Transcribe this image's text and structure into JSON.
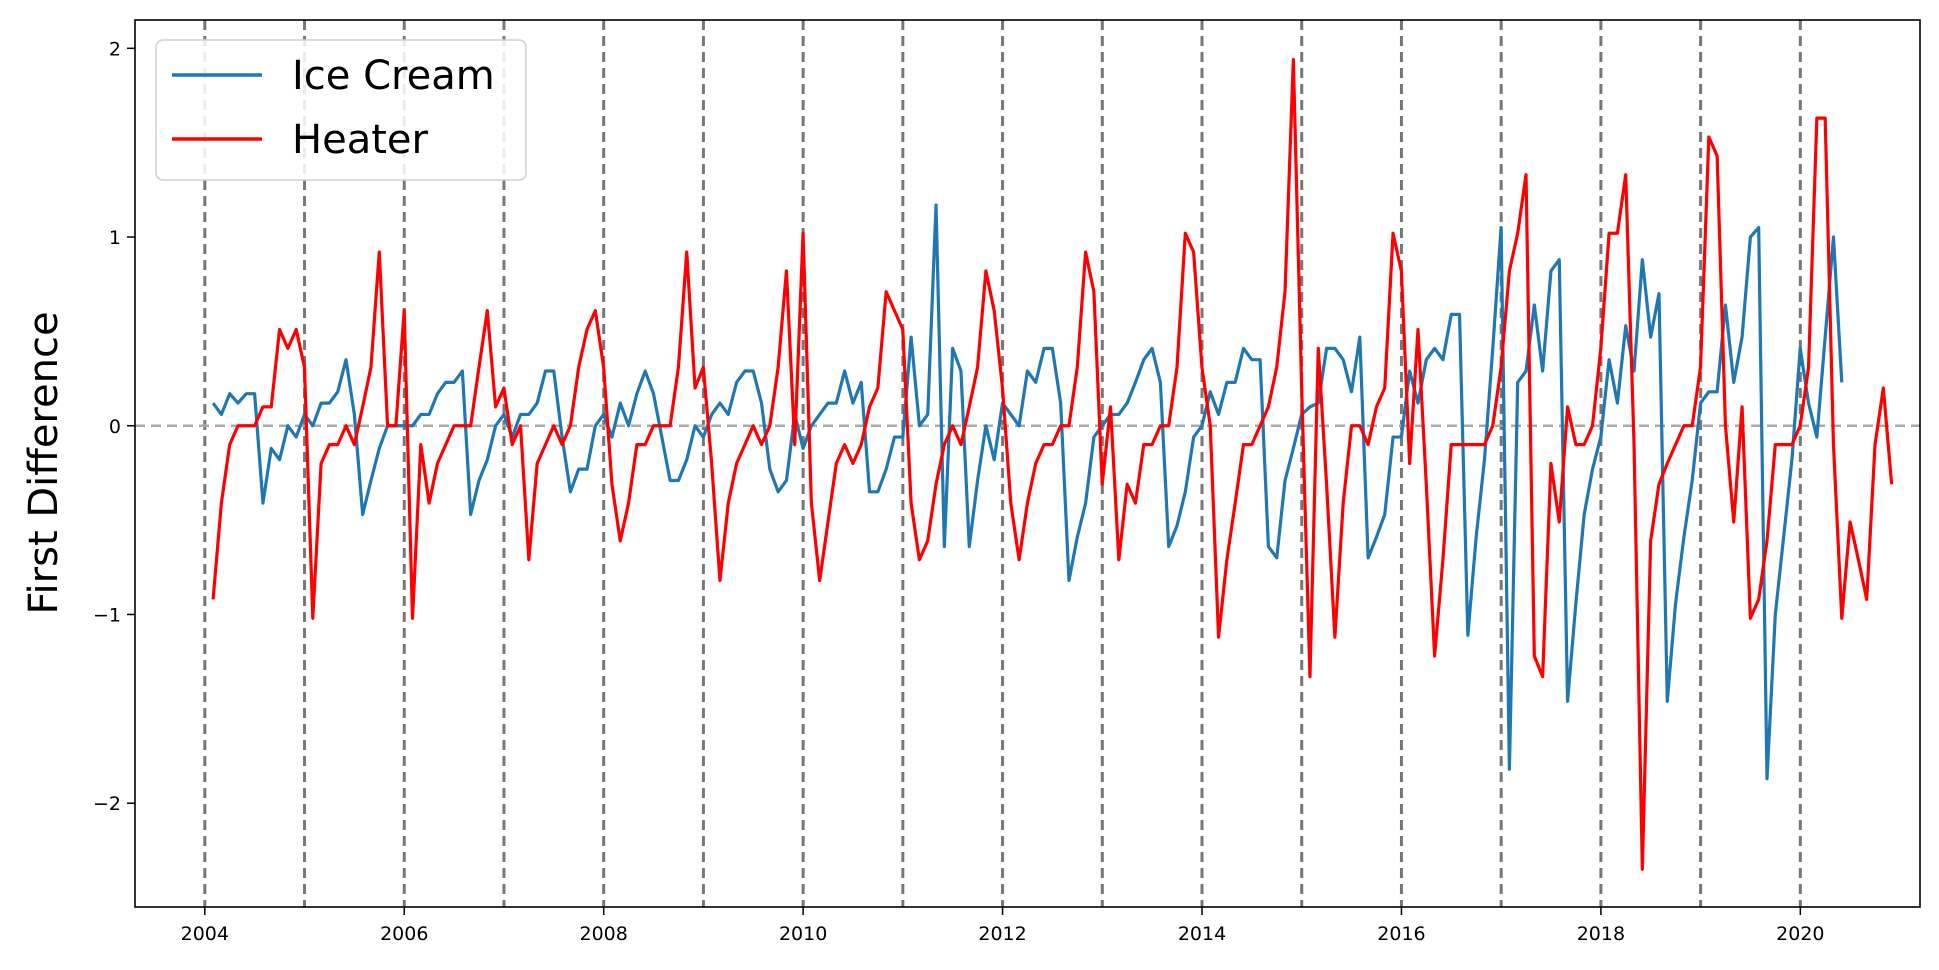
{
  "chart_data": {
    "type": "line",
    "title": "",
    "xlabel": "",
    "ylabel": "First Difference",
    "xlim": [
      2003.3,
      2021.2
    ],
    "ylim": [
      -2.55,
      2.15
    ],
    "x_ticks": [
      2004,
      2006,
      2008,
      2010,
      2012,
      2014,
      2016,
      2018,
      2020
    ],
    "x_tick_labels": [
      "2004",
      "2006",
      "2008",
      "2010",
      "2012",
      "2014",
      "2016",
      "2018",
      "2020"
    ],
    "y_ticks": [
      -2,
      -1,
      0,
      1,
      2
    ],
    "y_tick_labels": [
      "−2",
      "−1",
      "0",
      "1",
      "2"
    ],
    "x_start": 2004.083,
    "x_step": 0.08333,
    "year_lines": [
      2004,
      2005,
      2006,
      2007,
      2008,
      2009,
      2010,
      2011,
      2012,
      2013,
      2014,
      2015,
      2016,
      2017,
      2018,
      2019,
      2020
    ],
    "zero_line": 0,
    "grid": false,
    "legend": {
      "position": "top-left"
    },
    "series": [
      {
        "name": "Ice Cream",
        "color": "#1f77b4",
        "values": [
          0.12,
          0.06,
          0.17,
          0.12,
          0.17,
          0.17,
          -0.41,
          -0.12,
          -0.18,
          0,
          -0.06,
          0.06,
          0,
          0.12,
          0.12,
          0.18,
          0.35,
          0.06,
          -0.47,
          -0.29,
          -0.12,
          0,
          0,
          0,
          0,
          0.06,
          0.06,
          0.17,
          0.23,
          0.23,
          0.29,
          -0.47,
          -0.29,
          -0.18,
          0,
          0.06,
          -0.06,
          0.06,
          0.06,
          0.12,
          0.29,
          0.29,
          -0.06,
          -0.35,
          -0.23,
          -0.23,
          0,
          0.06,
          -0.06,
          0.12,
          0,
          0.17,
          0.29,
          0.17,
          -0.06,
          -0.29,
          -0.29,
          -0.18,
          0,
          -0.06,
          0.06,
          0.12,
          0.06,
          0.23,
          0.29,
          0.29,
          0.12,
          -0.23,
          -0.35,
          -0.29,
          0.06,
          -0.12,
          0,
          0.06,
          0.12,
          0.12,
          0.29,
          0.12,
          0.23,
          -0.35,
          -0.35,
          -0.23,
          -0.06,
          -0.06,
          0.47,
          0,
          0.06,
          1.17,
          -0.64,
          0.41,
          0.29,
          -0.64,
          -0.29,
          0,
          -0.18,
          0.12,
          0.06,
          0,
          0.29,
          0.23,
          0.41,
          0.41,
          0.12,
          -0.82,
          -0.59,
          -0.41,
          -0.06,
          0,
          0.06,
          0.06,
          0.12,
          0.23,
          0.35,
          0.41,
          0.23,
          -0.64,
          -0.53,
          -0.35,
          -0.06,
          0,
          0.18,
          0.06,
          0.23,
          0.23,
          0.41,
          0.35,
          0.35,
          -0.64,
          -0.7,
          -0.29,
          -0.12,
          0.06,
          0.1,
          0.12,
          0.41,
          0.41,
          0.35,
          0.18,
          0.47,
          -0.7,
          -0.59,
          -0.47,
          -0.06,
          -0.06,
          0.29,
          0.12,
          0.35,
          0.41,
          0.35,
          0.59,
          0.59,
          -1.11,
          -0.59,
          -0.18,
          0.41,
          1.05,
          -1.82,
          0.23,
          0.29,
          0.64,
          0.29,
          0.82,
          0.88,
          -1.46,
          -0.94,
          -0.47,
          -0.23,
          -0.06,
          0.35,
          0.12,
          0.53,
          0.29,
          0.88,
          0.47,
          0.7,
          -1.46,
          -0.94,
          -0.59,
          -0.29,
          0.12,
          0.18,
          0.18,
          0.64,
          0.23,
          0.47,
          1,
          1.05,
          -1.87,
          -1,
          -0.59,
          -0.18,
          0.41,
          0.12,
          -0.06,
          0.47,
          1,
          0.23
        ]
      },
      {
        "name": "Heater",
        "color": "#ff0000",
        "values": [
          -0.92,
          -0.41,
          -0.1,
          0,
          0,
          0,
          0.1,
          0.1,
          0.51,
          0.41,
          0.51,
          0.31,
          -1.02,
          -0.2,
          -0.1,
          -0.1,
          0,
          -0.1,
          0.1,
          0.31,
          0.92,
          0,
          0,
          0.61,
          -1.02,
          -0.1,
          -0.41,
          -0.2,
          -0.1,
          0,
          0,
          0,
          0.31,
          0.61,
          0.1,
          0.2,
          -0.1,
          0,
          -0.71,
          -0.2,
          -0.1,
          0,
          -0.1,
          0,
          0.31,
          0.51,
          0.61,
          0.31,
          -0.31,
          -0.61,
          -0.41,
          -0.1,
          -0.1,
          0,
          0,
          0,
          0.31,
          0.92,
          0.2,
          0.31,
          -0.2,
          -0.82,
          -0.41,
          -0.2,
          -0.1,
          0,
          -0.1,
          0,
          0.31,
          0.82,
          -0.1,
          1.02,
          -0.41,
          -0.82,
          -0.51,
          -0.2,
          -0.1,
          -0.2,
          -0.1,
          0.1,
          0.2,
          0.71,
          0.61,
          0.51,
          -0.41,
          -0.71,
          -0.61,
          -0.31,
          -0.1,
          0,
          -0.1,
          0.1,
          0.31,
          0.82,
          0.61,
          0.2,
          -0.41,
          -0.71,
          -0.41,
          -0.2,
          -0.1,
          -0.1,
          0,
          0,
          0.31,
          0.92,
          0.71,
          -0.31,
          0.1,
          -0.71,
          -0.31,
          -0.41,
          -0.1,
          -0.1,
          0,
          0,
          0.31,
          1.02,
          0.92,
          0.31,
          0,
          -1.12,
          -0.71,
          -0.41,
          -0.1,
          -0.1,
          0,
          0.1,
          0.31,
          0.71,
          1.94,
          0.2,
          -1.33,
          0.41,
          -0.31,
          -1.12,
          -0.41,
          0,
          0,
          -0.1,
          0.1,
          0.2,
          1.02,
          0.82,
          -0.2,
          0.51,
          -0.31,
          -1.22,
          -0.71,
          -0.1,
          -0.1,
          -0.1,
          -0.1,
          -0.1,
          0,
          0.31,
          0.82,
          1.02,
          1.33,
          -1.22,
          -1.33,
          -0.2,
          -0.51,
          0.1,
          -0.1,
          -0.1,
          0,
          0.41,
          1.02,
          1.02,
          1.33,
          -0.1,
          -2.35,
          -0.61,
          -0.31,
          -0.2,
          -0.1,
          0,
          0,
          0.31,
          1.53,
          1.43,
          0,
          -0.51,
          0.1,
          -1.02,
          -0.92,
          -0.61,
          -0.1,
          -0.1,
          -0.1,
          0,
          0.31,
          1.63,
          1.63,
          -0.1,
          -1.02,
          -0.51,
          -0.71,
          -0.92,
          -0.1,
          0.2,
          -0.31
        ]
      }
    ]
  }
}
